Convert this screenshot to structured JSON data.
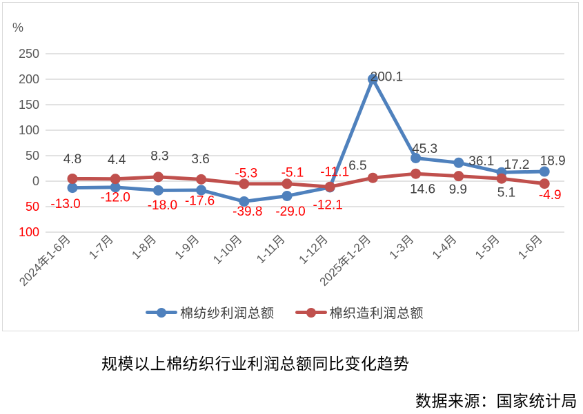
{
  "source": "数据来源：国家统计局",
  "chart_data": {
    "type": "line",
    "title": "规模以上棉纺织行业利润总额同比变化趋势",
    "ylabel": "%",
    "xlabel": "",
    "categories": [
      "2024年1-6月",
      "1-7月",
      "1-8月",
      "1-9月",
      "1-10月",
      "1-11月",
      "1-12月",
      "2025年1-2月",
      "1-3月",
      "1-4月",
      "1-5月",
      "1-6月"
    ],
    "series": [
      {
        "name": "棉纺纱利润总额",
        "color": "#4f81bd",
        "values": [
          -13.0,
          -12.0,
          -18.0,
          -17.6,
          -39.8,
          -29.0,
          -12.1,
          200.1,
          45.3,
          36.1,
          17.2,
          18.9
        ],
        "label_offsets": [
          [
            -10,
            24
          ],
          [
            0,
            15
          ],
          [
            6,
            22
          ],
          [
            -2,
            16
          ],
          [
            5,
            15
          ],
          [
            5,
            23
          ],
          [
            -3,
            26
          ],
          [
            20,
            -3
          ],
          [
            13,
            -13
          ],
          [
            33,
            -2
          ],
          [
            22,
            -11
          ],
          [
            12,
            -15
          ]
        ]
      },
      {
        "name": "棉织造利润总额",
        "color": "#c0504d",
        "values": [
          4.8,
          4.4,
          8.3,
          3.6,
          -5.3,
          -5.1,
          -11.1,
          6.5,
          14.6,
          9.9,
          5.1,
          -4.9
        ],
        "label_offsets": [
          [
            0,
            -28
          ],
          [
            2,
            -27
          ],
          [
            2,
            -30
          ],
          [
            -1,
            -29
          ],
          [
            3,
            -15
          ],
          [
            8,
            -16
          ],
          [
            7,
            -21
          ],
          [
            -22,
            -17
          ],
          [
            10,
            23
          ],
          [
            -1,
            20
          ],
          [
            7,
            21
          ],
          [
            8,
            17
          ]
        ]
      }
    ],
    "ylim": [
      -100,
      250
    ],
    "ytick_step": 50,
    "yticks": [
      {
        "value": 250,
        "label": "250"
      },
      {
        "value": 200,
        "label": "200"
      },
      {
        "value": 150,
        "label": "150"
      },
      {
        "value": 100,
        "label": "100"
      },
      {
        "value": 50,
        "label": "50"
      },
      {
        "value": 0,
        "label": "0"
      },
      {
        "value": -50,
        "label": "50"
      },
      {
        "value": -100,
        "label": "100"
      }
    ],
    "grid": true,
    "legend_position": "bottom",
    "colors": {
      "grid": "#d9d9d9",
      "axis_text": "#595959",
      "label_text": "#404040",
      "negative_text": "#ff0000",
      "background": "#ffffff"
    }
  }
}
